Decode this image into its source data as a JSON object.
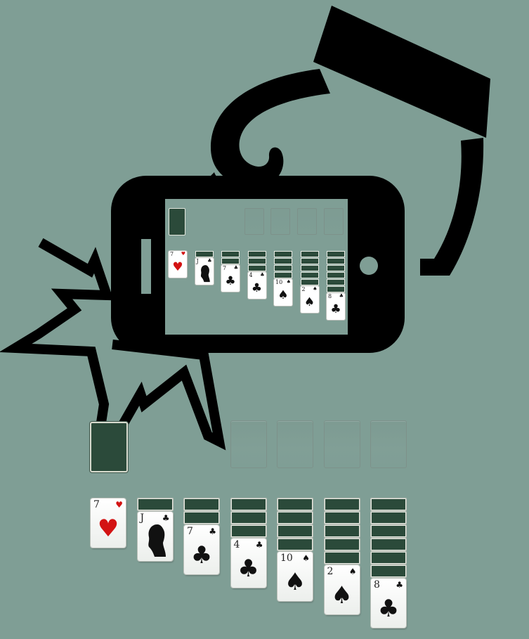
{
  "colors": {
    "table": "#7f9e95",
    "card_back": "#2b4a3a",
    "icon": "#000000",
    "red_suit": "#d31313"
  },
  "icons": [
    "hand-icon",
    "phone-icon",
    "burst-icon"
  ],
  "board": {
    "foundation_slots": 4,
    "stock": {
      "cards_shown": 1
    },
    "tableau": [
      {
        "hidden": 0,
        "rank": "7",
        "suit": "♥",
        "color": "red"
      },
      {
        "hidden": 1,
        "rank": "J",
        "suit": "♣",
        "color": "black",
        "art": "portrait"
      },
      {
        "hidden": 2,
        "rank": "7",
        "suit": "♣",
        "color": "black"
      },
      {
        "hidden": 3,
        "rank": "4",
        "suit": "♣",
        "color": "black"
      },
      {
        "hidden": 4,
        "rank": "10",
        "suit": "♠",
        "color": "black"
      },
      {
        "hidden": 5,
        "rank": "2",
        "suit": "♠",
        "color": "black"
      },
      {
        "hidden": 6,
        "rank": "8",
        "suit": "♣",
        "color": "black"
      }
    ]
  }
}
